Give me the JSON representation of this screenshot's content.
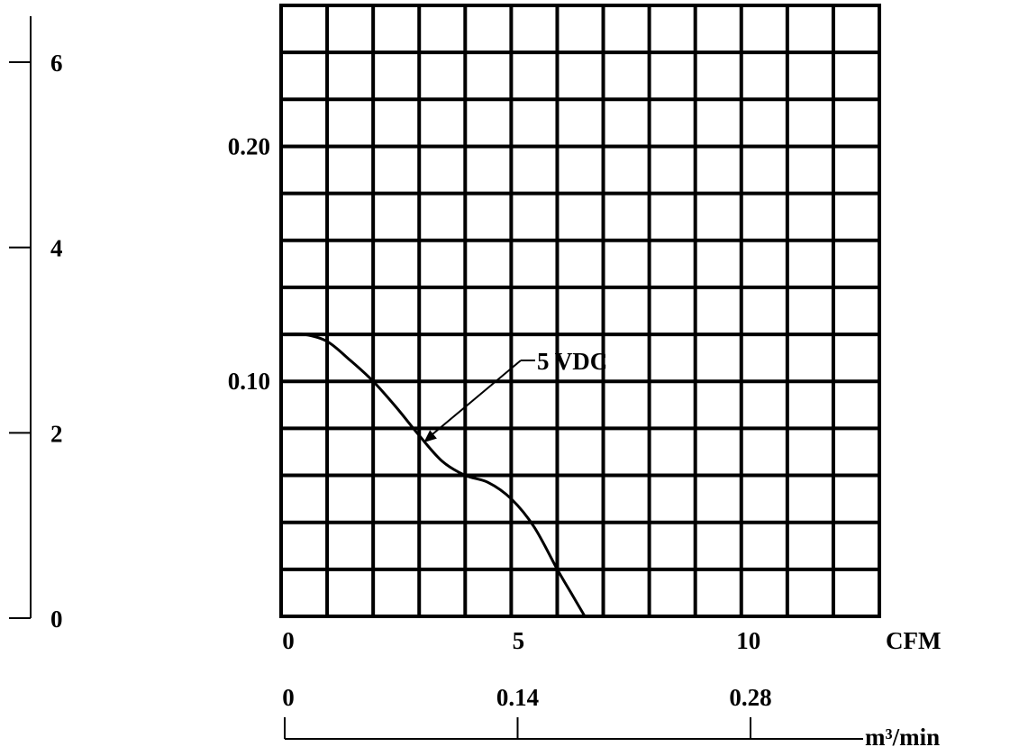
{
  "chart_data": {
    "type": "line",
    "title": "",
    "xlabel": "CFM",
    "ylabel": "",
    "x_secondary_label": "m³/min",
    "xlim": [
      0,
      13
    ],
    "ylim": [
      0,
      0.26
    ],
    "grid": true,
    "x_ticks": [
      "0",
      "5",
      "10"
    ],
    "x_tick_values": [
      0,
      5,
      10
    ],
    "x_secondary_ticks": [
      "0",
      "0.14",
      "0.28"
    ],
    "x_secondary_tick_values": [
      0,
      0.14,
      0.28
    ],
    "y_ticks": [
      "0.10",
      "0.20"
    ],
    "y_tick_values": [
      0.1,
      0.2
    ],
    "y_secondary_ticks": [
      "0",
      "2",
      "4",
      "6"
    ],
    "y_secondary_tick_values": [
      0,
      2,
      4,
      6
    ],
    "series": [
      {
        "name": "5 VDC",
        "x": [
          0,
          0.5,
          1.0,
          1.5,
          2.0,
          2.5,
          3.0,
          3.5,
          4.0,
          4.5,
          5.0,
          5.5,
          6.0,
          6.3,
          6.6
        ],
        "y": [
          0.12,
          0.12,
          0.117,
          0.109,
          0.1,
          0.089,
          0.077,
          0.066,
          0.06,
          0.057,
          0.05,
          0.038,
          0.02,
          0.01,
          0.0
        ]
      }
    ],
    "annotations": [
      {
        "text": "5 VDC",
        "points_to": [
          3.1,
          0.074
        ]
      }
    ]
  }
}
